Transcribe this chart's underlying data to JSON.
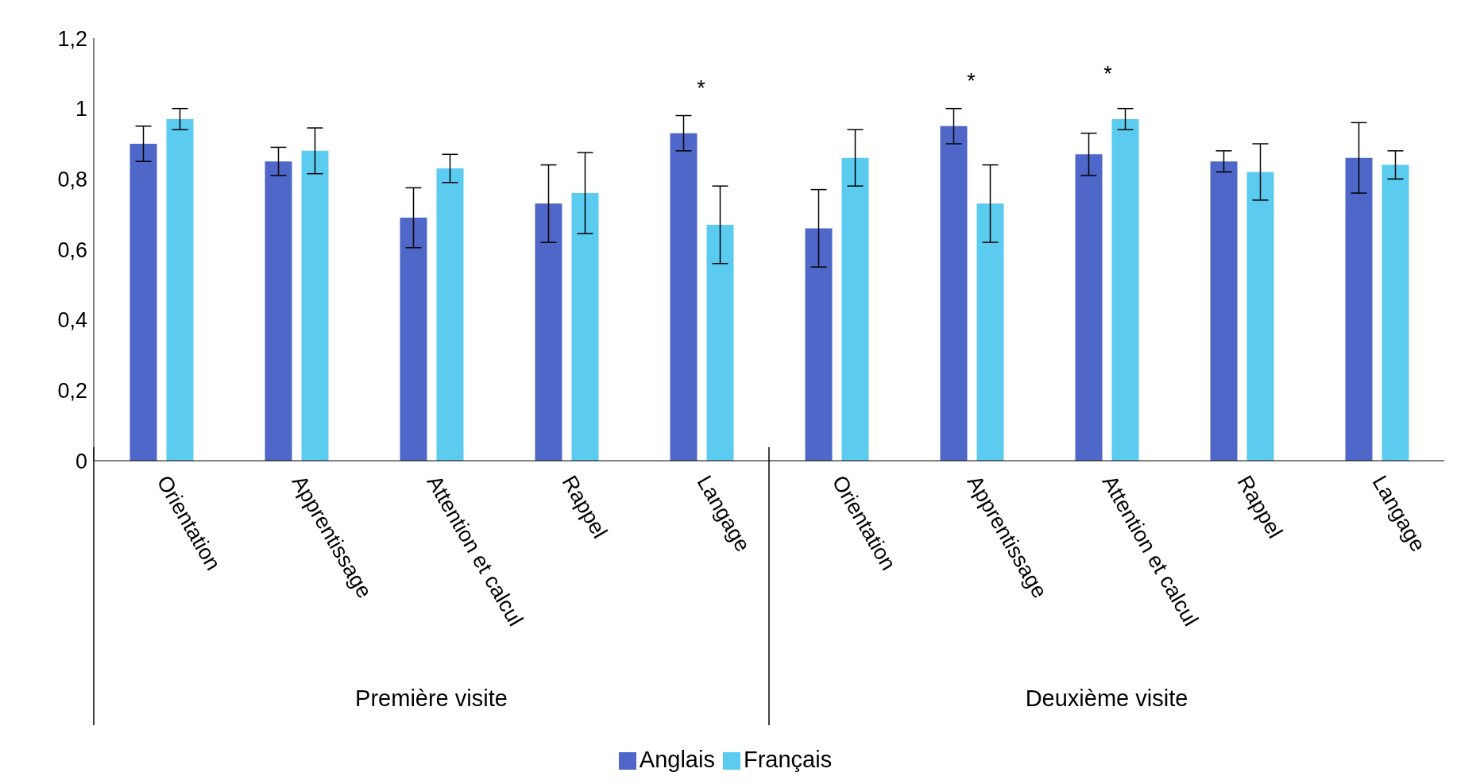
{
  "chart_data": {
    "type": "bar",
    "categories": [
      "Orientation",
      "Apprentissage",
      "Attention et calcul",
      "Rappel",
      "Langage",
      "Orientation",
      "Apprentissage",
      "Attention et calcul",
      "Rappel",
      "Langage"
    ],
    "series": [
      {
        "name": "Anglais",
        "color": "#4f67c8",
        "values": [
          0.9,
          0.85,
          0.69,
          0.73,
          0.93,
          0.66,
          0.95,
          0.87,
          0.85,
          0.86
        ],
        "errors": [
          0.05,
          0.04,
          0.085,
          0.11,
          0.05,
          0.11,
          0.05,
          0.06,
          0.03,
          0.1
        ],
        "value_labels": [
          null,
          null,
          null,
          null,
          "*",
          null,
          "*",
          null,
          null,
          null
        ]
      },
      {
        "name": "Français",
        "color": "#5bcbf0",
        "values": [
          0.97,
          0.88,
          0.83,
          0.76,
          0.67,
          0.86,
          0.73,
          0.97,
          0.82,
          0.84
        ],
        "errors": [
          0.03,
          0.065,
          0.04,
          0.115,
          0.11,
          0.08,
          0.11,
          0.03,
          0.08,
          0.04
        ],
        "value_labels": [
          null,
          null,
          null,
          null,
          null,
          null,
          null,
          "*",
          null,
          null
        ]
      }
    ],
    "ylim": [
      0,
      1.2
    ],
    "yticks": [
      0,
      {
        "value": 0.2,
        "label": "0,2"
      },
      {
        "value": 0.4,
        "label": "0,4"
      },
      {
        "value": 0.6,
        "label": "0,6"
      },
      {
        "value": 0.8,
        "label": "0,8"
      },
      1,
      {
        "value": 1.2,
        "label": "1,2"
      }
    ],
    "annotations": [
      "Première visite",
      "Deuxième visite"
    ],
    "legend": "bottom",
    "grid": false
  }
}
